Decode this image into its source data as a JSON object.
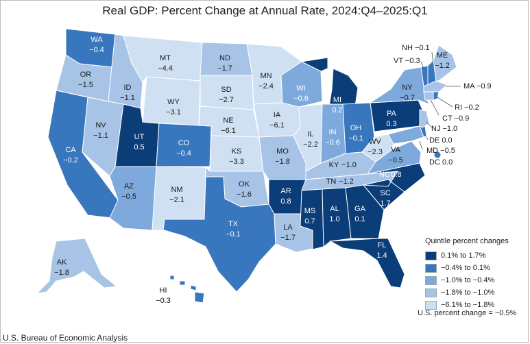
{
  "title": "Real GDP: Percent Change at Annual Rate, 2024:Q4–2025:Q1",
  "colors": {
    "q1": "#0b3d78",
    "q2": "#3876be",
    "q3": "#7ea9dc",
    "q4": "#a7c3e6",
    "q5": "#cfe0f2"
  },
  "legend": {
    "title": "Quintile percent changes",
    "items": [
      {
        "label": "0.1% to 1.7%",
        "color": "#0b3d78"
      },
      {
        "label": "−0.4% to 0.1%",
        "color": "#3876be"
      },
      {
        "label": "−1.0% to −0.4%",
        "color": "#7ea9dc"
      },
      {
        "label": "−1.8% to −1.0%",
        "color": "#a7c3e6"
      },
      {
        "label": "−6.1% to −1.8%",
        "color": "#cfe0f2"
      }
    ],
    "us_change": "U.S. percent change = −0.5%"
  },
  "source": "U.S. Bureau of Economic Analysis",
  "states": {
    "WA": {
      "abbr": "WA",
      "value": "−0.4"
    },
    "OR": {
      "abbr": "OR",
      "value": "−1.5"
    },
    "CA": {
      "abbr": "CA",
      "value": "−0.2"
    },
    "ID": {
      "abbr": "ID",
      "value": "−1.1"
    },
    "NV": {
      "abbr": "NV",
      "value": "−1.1"
    },
    "MT": {
      "abbr": "MT",
      "value": "−4.4"
    },
    "WY": {
      "abbr": "WY",
      "value": "−3.1"
    },
    "UT": {
      "abbr": "UT",
      "value": "0.5"
    },
    "CO": {
      "abbr": "CO",
      "value": "−0.4"
    },
    "AZ": {
      "abbr": "AZ",
      "value": "−0.5"
    },
    "NM": {
      "abbr": "NM",
      "value": "−2.1"
    },
    "ND": {
      "abbr": "ND",
      "value": "−1.7"
    },
    "SD": {
      "abbr": "SD",
      "value": "−2.7"
    },
    "NE": {
      "abbr": "NE",
      "value": "−6.1"
    },
    "KS": {
      "abbr": "KS",
      "value": "−3.3"
    },
    "OK": {
      "abbr": "OK",
      "value": "−1.6"
    },
    "TX": {
      "abbr": "TX",
      "value": "−0.1"
    },
    "MN": {
      "abbr": "MN",
      "value": "−2.4"
    },
    "IA": {
      "abbr": "IA",
      "value": "−6.1"
    },
    "MO": {
      "abbr": "MO",
      "value": "−1.8"
    },
    "AR": {
      "abbr": "AR",
      "value": "0.8"
    },
    "LA": {
      "abbr": "LA",
      "value": "−1.7"
    },
    "WI": {
      "abbr": "WI",
      "value": "−0.6"
    },
    "IL": {
      "abbr": "IL",
      "value": "−2.2"
    },
    "MI": {
      "abbr": "MI",
      "value": "0.2"
    },
    "IN": {
      "abbr": "IN",
      "value": "−0.6"
    },
    "OH": {
      "abbr": "OH",
      "value": "−0.1"
    },
    "KY": {
      "abbr": "KY",
      "value": "−1.0"
    },
    "TN": {
      "abbr": "TN",
      "value": "−1.2"
    },
    "MS": {
      "abbr": "MS",
      "value": "0.7"
    },
    "AL": {
      "abbr": "AL",
      "value": "1.0"
    },
    "GA": {
      "abbr": "GA",
      "value": "0.1"
    },
    "FL": {
      "abbr": "FL",
      "value": "1.4"
    },
    "SC": {
      "abbr": "SC",
      "value": "1.7"
    },
    "NC": {
      "abbr": "NC",
      "value": "0.8"
    },
    "VA": {
      "abbr": "VA",
      "value": "−0.5"
    },
    "WV": {
      "abbr": "WV",
      "value": "−2.3"
    },
    "PA": {
      "abbr": "PA",
      "value": "0.3"
    },
    "NY": {
      "abbr": "NY",
      "value": "−0.7"
    },
    "AK": {
      "abbr": "AK",
      "value": "−1.8"
    },
    "HI": {
      "abbr": "HI",
      "value": "−0.3"
    }
  },
  "external_labels": {
    "NH": "NH −0.1",
    "VT": "VT −0.3",
    "ME": "ME",
    "ME_value": "−1.2",
    "MA": "MA −0.9",
    "RI": "RI −0.2",
    "CT": "CT −0.9",
    "NJ": "NJ −1.0",
    "DE": "DE 0.0",
    "MD": "MD −0.5",
    "DC": "DC 0.0"
  }
}
